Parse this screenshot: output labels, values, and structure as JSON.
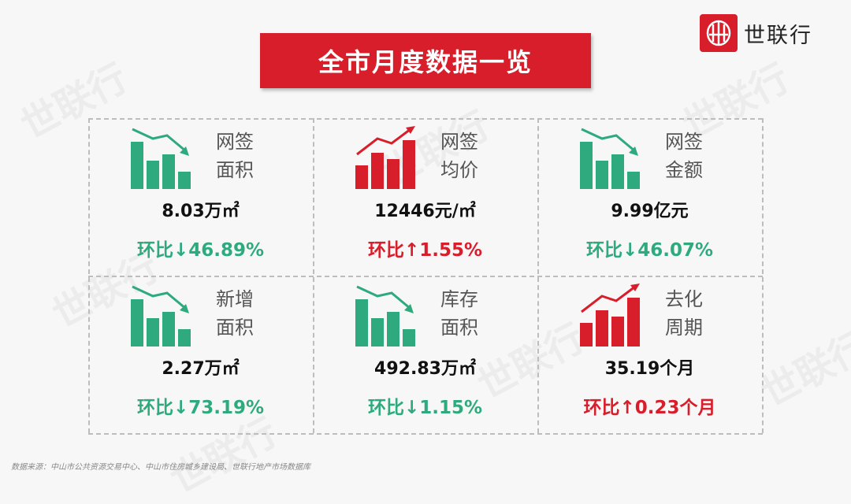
{
  "brand": {
    "name": "世联行"
  },
  "title": "全市月度数据一览",
  "colors": {
    "red": "#d81e2b",
    "green": "#2eaa7e"
  },
  "metrics": [
    {
      "label_line1": "网签",
      "label_line2": "面积",
      "value": "8.03万㎡",
      "change": "环比↓46.89%",
      "trend": "down",
      "icon": "trend-down-bar-chart-icon"
    },
    {
      "label_line1": "网签",
      "label_line2": "均价",
      "value": "12446元/㎡",
      "change": "环比↑1.55%",
      "trend": "up",
      "icon": "trend-up-bar-chart-icon"
    },
    {
      "label_line1": "网签",
      "label_line2": "金额",
      "value": "9.99亿元",
      "change": "环比↓46.07%",
      "trend": "down",
      "icon": "trend-down-bar-chart-icon"
    },
    {
      "label_line1": "新增",
      "label_line2": "面积",
      "value": "2.27万㎡",
      "change": "环比↓73.19%",
      "trend": "down",
      "icon": "trend-down-bar-chart-icon"
    },
    {
      "label_line1": "库存",
      "label_line2": "面积",
      "value": "492.83万㎡",
      "change": "环比↓1.15%",
      "trend": "down",
      "icon": "trend-down-bar-chart-icon"
    },
    {
      "label_line1": "去化",
      "label_line2": "周期",
      "value": "35.19个月",
      "change": "环比↑0.23个月",
      "trend": "up",
      "icon": "trend-up-bar-chart-icon"
    }
  ],
  "source": "数据来源：中山市公共资源交易中心、中山市住房城乡建设局、世联行地产市场数据库"
}
